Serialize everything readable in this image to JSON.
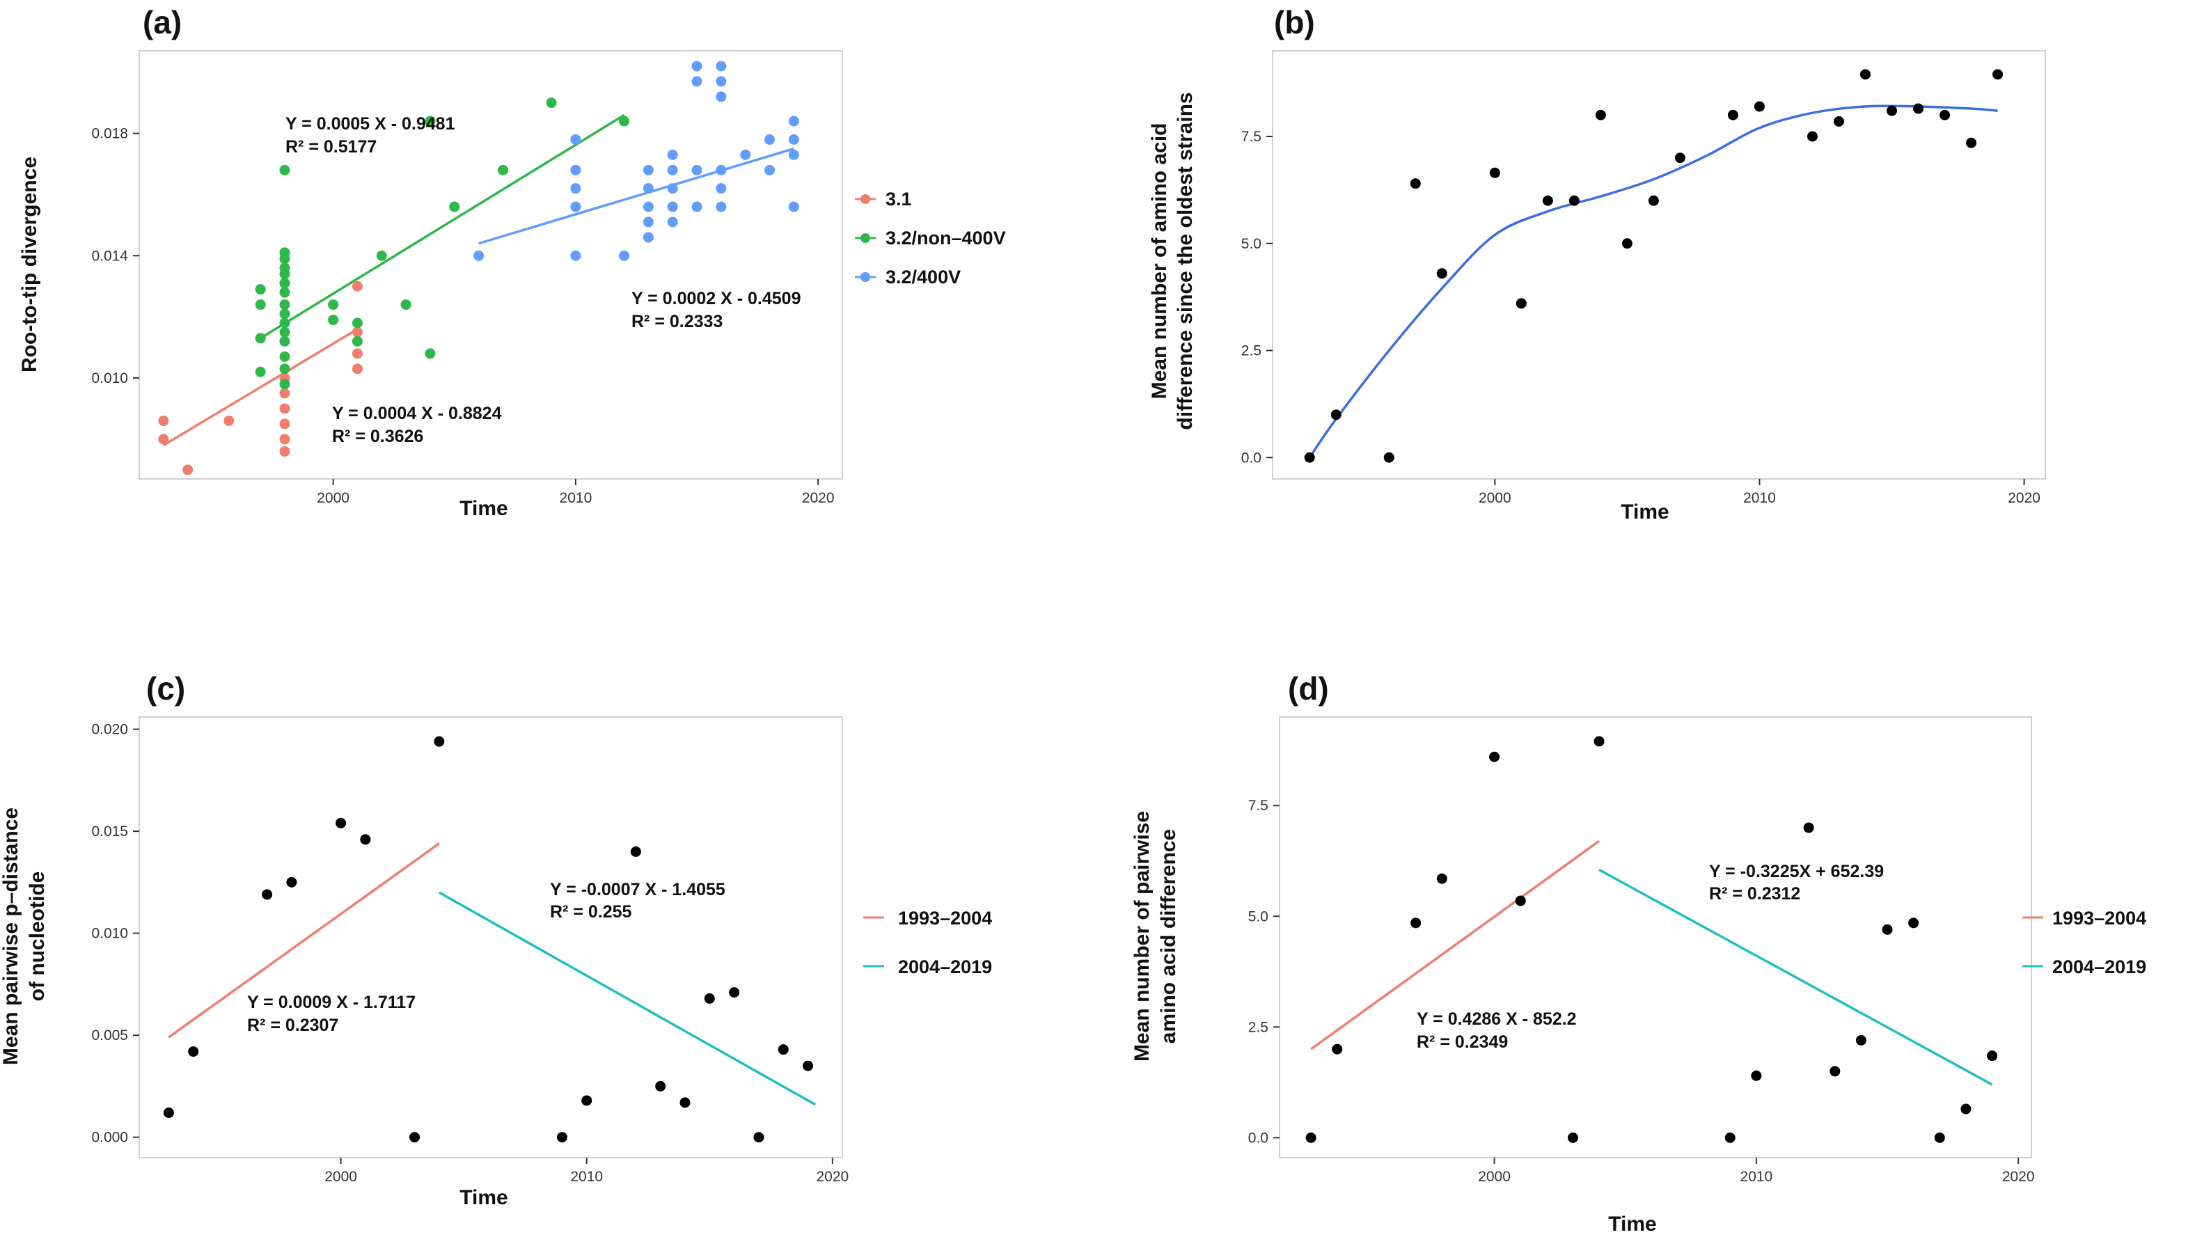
{
  "chart_data": [
    {
      "type": "scatter",
      "panel_label": "(a)",
      "xlabel": "Time",
      "ylabel": "Roo-to-tip divergence",
      "xlim": [
        1992,
        2021
      ],
      "ylim": [
        0.0067,
        0.0207
      ],
      "xticks": [
        2000,
        2010,
        2020
      ],
      "yticks": [
        0.01,
        0.014,
        0.018
      ],
      "ytick_labels": [
        "0.010",
        "0.014",
        "0.018"
      ],
      "legend_position": "right",
      "series": [
        {
          "name": "3.1",
          "color": "#F07E6E",
          "points": [
            [
              1993,
              0.0086
            ],
            [
              1993,
              0.008
            ],
            [
              1994,
              0.007
            ],
            [
              1995.7,
              0.0086
            ],
            [
              1997,
              0.0113
            ],
            [
              1998,
              0.01
            ],
            [
              1998,
              0.0095
            ],
            [
              1998,
              0.009
            ],
            [
              1998,
              0.0085
            ],
            [
              1998,
              0.008
            ],
            [
              1998,
              0.0076
            ],
            [
              2001,
              0.013
            ],
            [
              2001,
              0.0115
            ],
            [
              2001,
              0.0108
            ],
            [
              2001,
              0.0103
            ]
          ],
          "fit": {
            "x": [
              1993,
              2001
            ],
            "y": [
              0.0078,
              0.0116
            ]
          }
        },
        {
          "name": "3.2/non–400V",
          "color": "#2EB84A",
          "points": [
            [
              1997,
              0.0129
            ],
            [
              1997,
              0.0124
            ],
            [
              1997,
              0.0113
            ],
            [
              1997,
              0.0102
            ],
            [
              1998,
              0.0168
            ],
            [
              1998,
              0.0141
            ],
            [
              1998,
              0.0139
            ],
            [
              1998,
              0.0136
            ],
            [
              1998,
              0.0134
            ],
            [
              1998,
              0.0131
            ],
            [
              1998,
              0.0128
            ],
            [
              1998,
              0.0124
            ],
            [
              1998,
              0.0121
            ],
            [
              1998,
              0.0118
            ],
            [
              1998,
              0.0115
            ],
            [
              1998,
              0.0112
            ],
            [
              1998,
              0.0107
            ],
            [
              1998,
              0.0103
            ],
            [
              1998,
              0.0098
            ],
            [
              2000,
              0.0124
            ],
            [
              2000,
              0.0119
            ],
            [
              2001,
              0.0118
            ],
            [
              2001,
              0.0112
            ],
            [
              2002,
              0.014
            ],
            [
              2003,
              0.0124
            ],
            [
              2004,
              0.0184
            ],
            [
              2004,
              0.0108
            ],
            [
              2005,
              0.0156
            ],
            [
              2007,
              0.0168
            ],
            [
              2009,
              0.019
            ],
            [
              2012,
              0.0184
            ]
          ],
          "fit": {
            "x": [
              1997,
              2012
            ],
            "y": [
              0.0113,
              0.0186
            ]
          }
        },
        {
          "name": "3.2/400V",
          "color": "#619CFF",
          "points": [
            [
              2006,
              0.014
            ],
            [
              2010,
              0.0178
            ],
            [
              2010,
              0.0168
            ],
            [
              2010,
              0.0162
            ],
            [
              2010,
              0.0156
            ],
            [
              2010,
              0.014
            ],
            [
              2012,
              0.014
            ],
            [
              2013,
              0.0168
            ],
            [
              2013,
              0.0162
            ],
            [
              2013,
              0.0156
            ],
            [
              2013,
              0.0151
            ],
            [
              2013,
              0.0146
            ],
            [
              2014,
              0.0173
            ],
            [
              2014,
              0.0168
            ],
            [
              2014,
              0.0162
            ],
            [
              2014,
              0.0156
            ],
            [
              2014,
              0.0151
            ],
            [
              2015,
              0.0168
            ],
            [
              2015,
              0.0156
            ],
            [
              2015,
              0.0202
            ],
            [
              2015,
              0.0197
            ],
            [
              2016,
              0.0202
            ],
            [
              2016,
              0.0197
            ],
            [
              2016,
              0.0192
            ],
            [
              2016,
              0.0168
            ],
            [
              2016,
              0.0162
            ],
            [
              2016,
              0.0156
            ],
            [
              2017,
              0.0173
            ],
            [
              2018,
              0.0178
            ],
            [
              2018,
              0.0168
            ],
            [
              2019,
              0.0184
            ],
            [
              2019,
              0.0178
            ],
            [
              2019,
              0.0173
            ],
            [
              2019,
              0.0156
            ]
          ],
          "fit": {
            "x": [
              2006,
              2019
            ],
            "y": [
              0.0144,
              0.0175
            ]
          }
        }
      ],
      "annotations": [
        {
          "line1": "Y = 0.0005 X - 0.9481",
          "line2": "R² = 0.5177"
        },
        {
          "line1": "Y = 0.0002 X - 0.4509",
          "line2": "R² = 0.2333"
        },
        {
          "line1": "Y = 0.0004 X - 0.8824",
          "line2": "R² = 0.3626"
        }
      ]
    },
    {
      "type": "scatter",
      "panel_label": "(b)",
      "xlabel": "Time",
      "ylabel_lines": [
        "Mean number of amino acid",
        "difference since the oldest strains"
      ],
      "xlim": [
        1991.6,
        2020.8
      ],
      "ylim": [
        -0.5,
        9.5
      ],
      "xticks": [
        2000,
        2010,
        2020
      ],
      "yticks": [
        0,
        2.5,
        5,
        7.5
      ],
      "ytick_labels": [
        "0.0",
        "2.5",
        "5.0",
        "7.5"
      ],
      "point_color": "#000000",
      "smooth_color": "#3B6FE0",
      "points": [
        [
          1993,
          0
        ],
        [
          1994,
          1
        ],
        [
          1996,
          0
        ],
        [
          1997,
          6.4
        ],
        [
          1998,
          4.3
        ],
        [
          2000,
          6.65
        ],
        [
          2001,
          3.6
        ],
        [
          2002,
          6
        ],
        [
          2003,
          6
        ],
        [
          2004,
          8
        ],
        [
          2005,
          5
        ],
        [
          2006,
          6
        ],
        [
          2007,
          7
        ],
        [
          2009,
          8
        ],
        [
          2010,
          8.2
        ],
        [
          2012,
          7.5
        ],
        [
          2013,
          7.85
        ],
        [
          2014,
          8.95
        ],
        [
          2015,
          8.1
        ],
        [
          2016,
          8.15
        ],
        [
          2017,
          8
        ],
        [
          2018,
          7.35
        ],
        [
          2019,
          8.95
        ]
      ],
      "smooth": {
        "x": [
          1993,
          1994,
          1996,
          1998,
          2000,
          2002,
          2004,
          2006,
          2008,
          2010,
          2012,
          2014,
          2016,
          2018,
          2019
        ],
        "y": [
          0,
          0.9,
          2.5,
          3.95,
          5.2,
          5.75,
          6.1,
          6.5,
          7.05,
          7.7,
          8.05,
          8.2,
          8.2,
          8.15,
          8.1
        ]
      }
    },
    {
      "type": "scatter",
      "panel_label": "(c)",
      "xlabel": "Time",
      "ylabel_lines": [
        "Mean pairwise p–distance",
        "of nucleotide"
      ],
      "xlim": [
        1991.8,
        2020.4
      ],
      "ylim": [
        -0.001,
        0.0206
      ],
      "xticks": [
        2000,
        2010,
        2020
      ],
      "yticks": [
        0,
        0.005,
        0.01,
        0.015,
        0.02
      ],
      "ytick_labels": [
        "0.000",
        "0.005",
        "0.010",
        "0.015",
        "0.020"
      ],
      "point_color": "#000000",
      "points": [
        [
          1993,
          0.0012
        ],
        [
          1994,
          0.0042
        ],
        [
          1997,
          0.0119
        ],
        [
          1998,
          0.0125
        ],
        [
          2000,
          0.0154
        ],
        [
          2001,
          0.0146
        ],
        [
          2003,
          0
        ],
        [
          2004,
          0.0194
        ],
        [
          2009,
          0
        ],
        [
          2010,
          0.0018
        ],
        [
          2012,
          0.014
        ],
        [
          2013,
          0.0025
        ],
        [
          2014,
          0.0017
        ],
        [
          2015,
          0.0068
        ],
        [
          2016,
          0.0071
        ],
        [
          2017,
          0
        ],
        [
          2018,
          0.0043
        ],
        [
          2019,
          0.0035
        ]
      ],
      "series": [
        {
          "name": "1993–2004",
          "color": "#F07E6E",
          "fit": {
            "x": [
              1993,
              2004
            ],
            "y": [
              0.0049,
              0.0144
            ]
          }
        },
        {
          "name": "2004–2019",
          "color": "#1FBFC4",
          "fit": {
            "x": [
              2004,
              2019.3
            ],
            "y": [
              0.012,
              0.0016
            ]
          }
        }
      ],
      "annotations": [
        {
          "line1": "Y = -0.0007 X - 1.4055",
          "line2": "R² = 0.255"
        },
        {
          "line1": "Y = 0.0009 X - 1.7117",
          "line2": "R² = 0.2307"
        }
      ]
    },
    {
      "type": "scatter",
      "panel_label": "(d)",
      "xlabel": "Time",
      "ylabel_lines": [
        "Mean number of pairwise",
        "amino acid difference"
      ],
      "xlim": [
        1991.8,
        2020.5
      ],
      "ylim": [
        -0.45,
        9.5
      ],
      "xticks": [
        2000,
        2010,
        2020
      ],
      "yticks": [
        0,
        2.5,
        5,
        7.5
      ],
      "ytick_labels": [
        "0.0",
        "2.5",
        "5.0",
        "7.5"
      ],
      "point_color": "#000000",
      "points": [
        [
          1993,
          0
        ],
        [
          1994,
          2
        ],
        [
          1997,
          4.85
        ],
        [
          1998,
          5.85
        ],
        [
          2000,
          8.6
        ],
        [
          2001,
          5.35
        ],
        [
          2003,
          0
        ],
        [
          2004,
          8.95
        ],
        [
          2009,
          0
        ],
        [
          2010,
          1.4
        ],
        [
          2012,
          7
        ],
        [
          2013,
          1.5
        ],
        [
          2014,
          2.2
        ],
        [
          2015,
          4.7
        ],
        [
          2016,
          4.85
        ],
        [
          2017,
          0
        ],
        [
          2018,
          0.65
        ],
        [
          2019,
          1.85
        ]
      ],
      "series": [
        {
          "name": "1993–2004",
          "color": "#F07E6E",
          "fit": {
            "x": [
              1993,
              2004
            ],
            "y": [
              2.0,
              6.7
            ]
          }
        },
        {
          "name": "2004–2019",
          "color": "#1FBFC4",
          "fit": {
            "x": [
              2004,
              2019
            ],
            "y": [
              6.05,
              1.2
            ]
          }
        }
      ],
      "annotations": [
        {
          "line1": "Y = -0.3225X  + 652.39",
          "line2": "R² = 0.2312"
        },
        {
          "line1": "Y = 0.4286 X - 852.2",
          "line2": "R² = 0.2349"
        }
      ]
    }
  ]
}
